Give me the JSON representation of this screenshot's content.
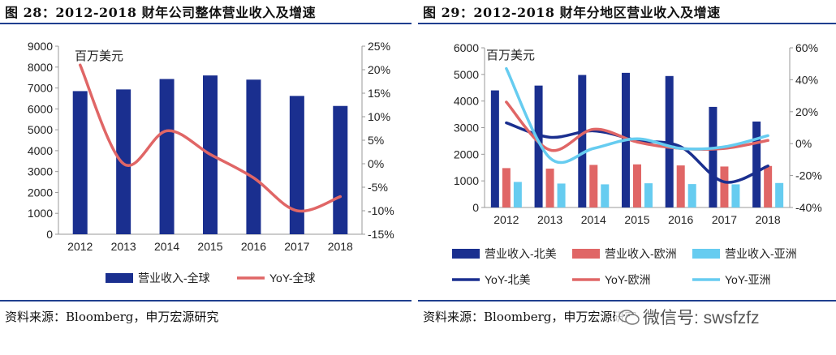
{
  "left": {
    "title": "图 28：2012-2018 财年公司整体营业收入及增速",
    "source": "资料来源：Bloomberg，申万宏源研究"
  },
  "right": {
    "title": "图 29：2012-2018 财年分地区营业收入及增速",
    "source": "资料来源：Bloomberg，申万宏源研究"
  },
  "watermark": {
    "text": "微信号: swsfzfz",
    "icon": "wechat-icon"
  },
  "colors": {
    "navy": "#1a2f8f",
    "red": "#e06666",
    "cyan": "#66ccf0",
    "rule": "#1f3f8f"
  },
  "chart_data": [
    {
      "type": "bar",
      "unit_label": "百万美元",
      "categories": [
        "2012",
        "2013",
        "2014",
        "2015",
        "2016",
        "2017",
        "2018"
      ],
      "y_left_ticks": [
        "0",
        "1000",
        "2000",
        "3000",
        "4000",
        "5000",
        "6000",
        "7000",
        "8000",
        "9000"
      ],
      "y_right_ticks": [
        "-15%",
        "-10%",
        "-5%",
        "0%",
        "5%",
        "10%",
        "15%",
        "20%",
        "25%"
      ],
      "ylim_left": [
        0,
        9000
      ],
      "ylim_right": [
        -15,
        25
      ],
      "series": [
        {
          "name": "营业收入-全球",
          "type": "bar",
          "axis": "left",
          "color": "#1a2f8f",
          "values": [
            6850,
            6930,
            7430,
            7600,
            7400,
            6620,
            6140
          ]
        },
        {
          "name": "YoY-全球",
          "type": "line",
          "axis": "right",
          "color": "#e06666",
          "values": [
            21,
            0,
            7,
            2,
            -3,
            -10,
            -7
          ]
        }
      ],
      "legend": [
        "营业收入-全球",
        "YoY-全球"
      ],
      "legend_position": "bottom"
    },
    {
      "type": "bar",
      "unit_label": "百万美元",
      "categories": [
        "2012",
        "2013",
        "2014",
        "2015",
        "2016",
        "2017",
        "2018"
      ],
      "y_left_ticks": [
        "0",
        "1000",
        "2000",
        "3000",
        "4000",
        "5000",
        "6000"
      ],
      "y_right_ticks": [
        "-40%",
        "-20%",
        "0%",
        "20%",
        "40%",
        "60%"
      ],
      "ylim_left": [
        0,
        6000
      ],
      "ylim_right": [
        -40,
        60
      ],
      "series": [
        {
          "name": "营业收入-北美",
          "type": "bar",
          "axis": "left",
          "color": "#1a2f8f",
          "values": [
            4400,
            4580,
            4980,
            5060,
            4940,
            3780,
            3230
          ]
        },
        {
          "name": "营业收入-欧洲",
          "type": "bar",
          "axis": "left",
          "color": "#e06666",
          "values": [
            1480,
            1460,
            1600,
            1620,
            1580,
            1540,
            1560
          ]
        },
        {
          "name": "营业收入-亚洲",
          "type": "bar",
          "axis": "left",
          "color": "#66ccf0",
          "values": [
            960,
            900,
            870,
            910,
            880,
            870,
            920
          ]
        },
        {
          "name": "YoY-北美",
          "type": "line",
          "axis": "right",
          "color": "#1a2f8f",
          "values": [
            13,
            4,
            8,
            2,
            -2,
            -24,
            -14
          ]
        },
        {
          "name": "YoY-欧洲",
          "type": "line",
          "axis": "right",
          "color": "#e06666",
          "values": [
            26,
            -4,
            9,
            1,
            -3,
            -3,
            2
          ]
        },
        {
          "name": "YoY-亚洲",
          "type": "line",
          "axis": "right",
          "color": "#66ccf0",
          "values": [
            47,
            -9,
            -3,
            3,
            -3,
            -2,
            5
          ]
        }
      ],
      "legend": [
        "营业收入-北美",
        "营业收入-欧洲",
        "营业收入-亚洲",
        "YoY-北美",
        "YoY-欧洲",
        "YoY-亚洲"
      ],
      "legend_position": "bottom"
    }
  ]
}
